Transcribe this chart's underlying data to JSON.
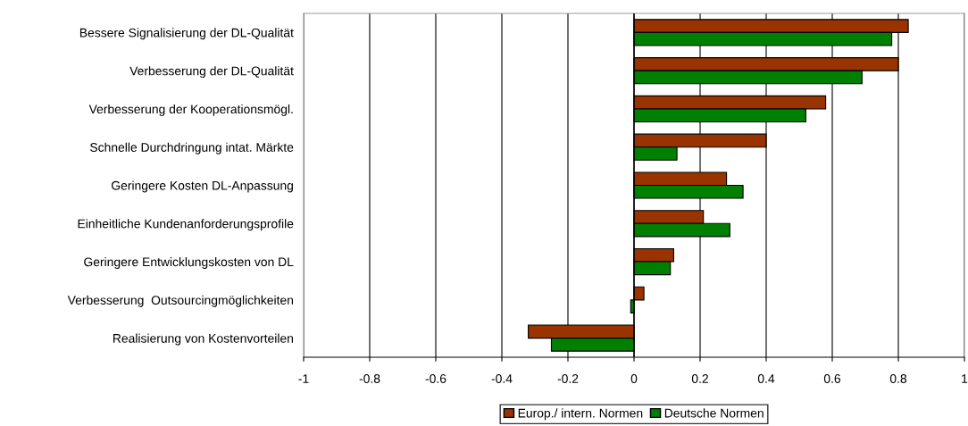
{
  "chart_data": {
    "type": "bar",
    "orientation": "horizontal",
    "categories": [
      "Bessere Signalisierung der DL-Qualität",
      "Verbesserung der DL-Qualität",
      "Verbesserung der Kooperationsmögl.",
      "Schnelle Durchdringung intat. Märkte",
      "Geringere Kosten DL-Anpassung",
      "Einheitliche Kundenanforderungsprofile",
      "Geringere Entwicklungskosten von DL",
      "Verbesserung  Outsourcingmöglichkeiten",
      "Realisierung von Kostenvorteilen"
    ],
    "series": [
      {
        "name": "Europ./ intern. Normen",
        "color": "#993300",
        "values": [
          0.83,
          0.8,
          0.58,
          0.4,
          0.28,
          0.21,
          0.12,
          0.03,
          -0.32
        ]
      },
      {
        "name": "Deutsche Normen",
        "color": "#008000",
        "values": [
          0.78,
          0.69,
          0.52,
          0.13,
          0.33,
          0.29,
          0.11,
          -0.01,
          -0.25
        ]
      }
    ],
    "xlim": [
      -1,
      1
    ],
    "xticks": [
      -1,
      -0.8,
      -0.6,
      -0.4,
      -0.2,
      0,
      0.2,
      0.4,
      0.6,
      0.8,
      1
    ],
    "grid": "x",
    "legend": "bottom"
  }
}
